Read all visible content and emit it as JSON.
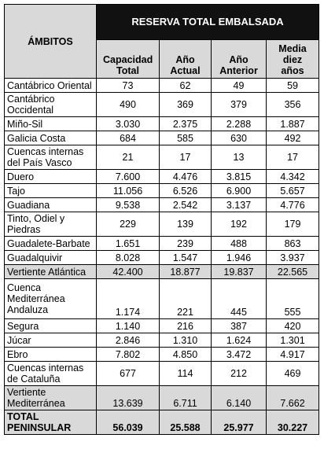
{
  "header": {
    "group": "RESERVA TOTAL EMBALSADA",
    "row_header": "ÁMBITOS",
    "columns": [
      "Capacidad Total",
      "Año Actual",
      "Año Anterior",
      "Media diez años"
    ]
  },
  "table": {
    "rows": [
      [
        "Cantábrico Oriental",
        "73",
        "62",
        "49",
        "59"
      ],
      [
        "Cantábrico Occidental",
        "490",
        "369",
        "379",
        "356"
      ],
      [
        "Miño-Sil",
        "3.030",
        "2.375",
        "2.288",
        "1.887"
      ],
      [
        "Galicia Costa",
        "684",
        "585",
        "630",
        "492"
      ],
      [
        "Cuencas internas del País Vasco",
        "21",
        "17",
        "13",
        "17"
      ],
      [
        "Duero",
        "7.600",
        "4.476",
        "3.815",
        "4.342"
      ],
      [
        "Tajo",
        "11.056",
        "6.526",
        "6.900",
        "5.657"
      ],
      [
        "Guadiana",
        "9.538",
        "2.542",
        "3.137",
        "4.776"
      ],
      [
        "Tinto, Odiel y Piedras",
        "229",
        "139",
        "192",
        "179"
      ],
      [
        "Guadalete-Barbate",
        "1.651",
        "239",
        "488",
        "863"
      ],
      [
        "Guadalquivir",
        "8.028",
        "1.547",
        "1.946",
        "3.937"
      ],
      [
        "Vertiente Atlántica",
        "42.400",
        "18.877",
        "19.837",
        "22.565"
      ],
      [
        "Cuenca Mediterránea Andaluza",
        "1.174",
        "221",
        "445",
        "555"
      ],
      [
        "Segura",
        "1.140",
        "216",
        "387",
        "420"
      ],
      [
        "Júcar",
        "2.846",
        "1.310",
        "1.624",
        "1.301"
      ],
      [
        "Ebro",
        "7.802",
        "4.850",
        "3.472",
        "4.917"
      ],
      [
        "Cuencas internas de Cataluña",
        "677",
        "114",
        "212",
        "469"
      ],
      [
        "Vertiente Mediterránea",
        "13.639",
        "6.711",
        "6.140",
        "7.662"
      ],
      [
        "TOTAL PENINSULAR",
        "56.039",
        "25.588",
        "25.977",
        "30.227"
      ]
    ]
  }
}
